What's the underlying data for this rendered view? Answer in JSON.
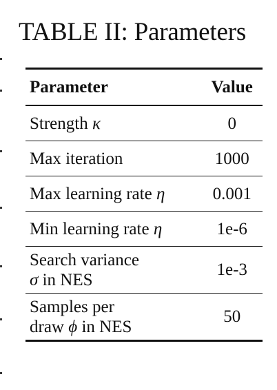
{
  "caption": "TABLE II: Parameters",
  "table": {
    "headers": {
      "parameter": "Parameter",
      "value": "Value"
    },
    "rows": [
      {
        "parameter_text": "Strength ",
        "symbol": "κ",
        "parameter_suffix": "",
        "parameter_line2": "",
        "value": "0"
      },
      {
        "parameter_text": "Max iteration",
        "symbol": "",
        "parameter_suffix": "",
        "parameter_line2": "",
        "value": "1000"
      },
      {
        "parameter_text": "Max learning rate ",
        "symbol": "η",
        "parameter_suffix": "",
        "parameter_line2": "",
        "value": "0.001"
      },
      {
        "parameter_text": "Min learning rate ",
        "symbol": "η",
        "parameter_suffix": "",
        "parameter_line2": "",
        "value": "1e-6"
      },
      {
        "parameter_text": "Search variance",
        "symbol": "σ",
        "parameter_suffix": " in NES",
        "parameter_line2": "",
        "value": "1e-3"
      },
      {
        "parameter_text": "Samples per",
        "parameter_line2": "draw ",
        "symbol": "ϕ",
        "parameter_suffix": " in NES",
        "value": "50"
      }
    ]
  }
}
